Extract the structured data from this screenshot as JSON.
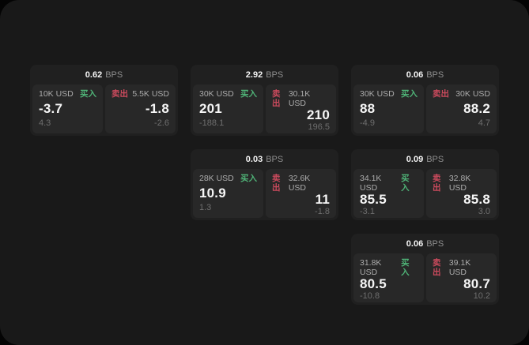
{
  "labels": {
    "buy": "买入",
    "sell": "卖出",
    "bps": "BPS"
  },
  "colors": {
    "buy_green": "#4fb377",
    "sell_red": "#cb4a5d",
    "surface": "#191919",
    "card": "#202020",
    "panel": "#282828"
  },
  "cards": [
    {
      "row": 1,
      "col": 1,
      "bps_value": "0.62",
      "buy": {
        "amount": "10K USD",
        "value": "-3.7",
        "change": "4.3"
      },
      "sell": {
        "amount": "5.5K USD",
        "value": "-1.8",
        "change": "-2.6"
      }
    },
    {
      "row": 1,
      "col": 2,
      "bps_value": "2.92",
      "buy": {
        "amount": "30K USD",
        "value": "201",
        "change": "-188.1"
      },
      "sell": {
        "amount": "30.1K USD",
        "value": "210",
        "change": "196.5"
      }
    },
    {
      "row": 1,
      "col": 3,
      "bps_value": "0.06",
      "buy": {
        "amount": "30K USD",
        "value": "88",
        "change": "-4.9"
      },
      "sell": {
        "amount": "30K USD",
        "value": "88.2",
        "change": "4.7"
      }
    },
    {
      "row": 2,
      "col": 2,
      "bps_value": "0.03",
      "buy": {
        "amount": "28K USD",
        "value": "10.9",
        "change": "1.3"
      },
      "sell": {
        "amount": "32.6K USD",
        "value": "11",
        "change": "-1.8"
      }
    },
    {
      "row": 2,
      "col": 3,
      "bps_value": "0.09",
      "buy": {
        "amount": "34.1K USD",
        "value": "85.5",
        "change": "-3.1"
      },
      "sell": {
        "amount": "32.8K USD",
        "value": "85.8",
        "change": "3.0"
      }
    },
    {
      "row": 3,
      "col": 3,
      "bps_value": "0.06",
      "buy": {
        "amount": "31.8K USD",
        "value": "80.5",
        "change": "-10.8"
      },
      "sell": {
        "amount": "39.1K USD",
        "value": "80.7",
        "change": "10.2"
      }
    }
  ]
}
